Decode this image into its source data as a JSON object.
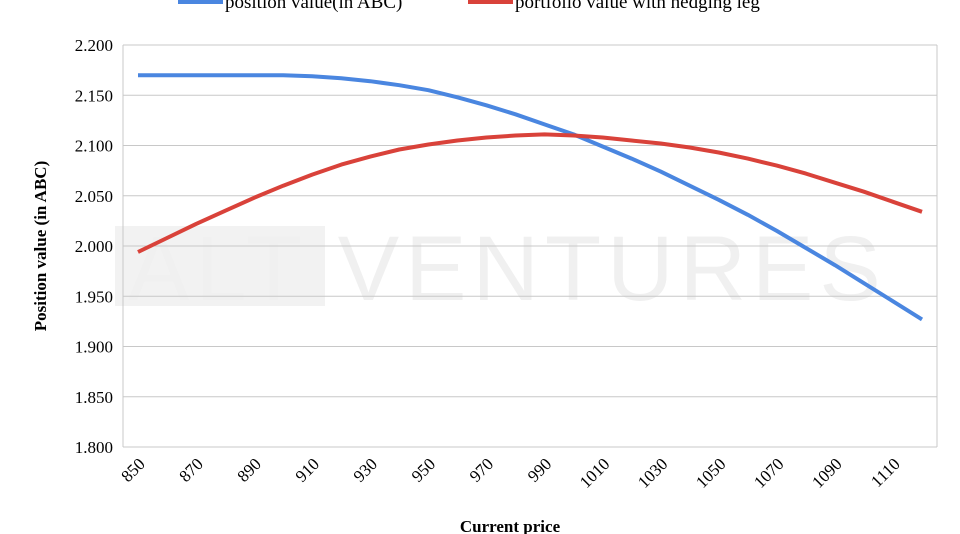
{
  "chart_data": {
    "type": "line",
    "title": "",
    "xlabel": "Current price",
    "ylabel": "Position value (in ABC)",
    "ylim": [
      1.8,
      2.2
    ],
    "yticks": [
      "1.800",
      "1.850",
      "1.900",
      "1.950",
      "2.000",
      "2.050",
      "2.100",
      "2.150",
      "2.200"
    ],
    "xtick_labels": [
      "850",
      "870",
      "890",
      "910",
      "930",
      "950",
      "970",
      "990",
      "1010",
      "1030",
      "1050",
      "1070",
      "1090",
      "1110"
    ],
    "x": [
      850,
      860,
      870,
      880,
      890,
      900,
      910,
      920,
      930,
      940,
      950,
      960,
      970,
      980,
      990,
      1000,
      1010,
      1020,
      1030,
      1040,
      1050,
      1060,
      1070,
      1080,
      1090,
      1100,
      1110,
      1120
    ],
    "grid": "horizontal",
    "legend_position": "top",
    "series": [
      {
        "name": "position value(in ABC)",
        "color": "#4a86e0",
        "values": [
          2.17,
          2.17,
          2.17,
          2.17,
          2.17,
          2.17,
          2.169,
          2.167,
          2.164,
          2.16,
          2.155,
          2.148,
          2.14,
          2.131,
          2.121,
          2.111,
          2.099,
          2.087,
          2.074,
          2.06,
          2.046,
          2.031,
          2.015,
          1.998,
          1.981,
          1.963,
          1.945,
          1.927
        ]
      },
      {
        "name": "portfolio value with hedging leg",
        "color": "#d9423a",
        "values": [
          1.994,
          2.008,
          2.022,
          2.035,
          2.048,
          2.06,
          2.071,
          2.081,
          2.089,
          2.096,
          2.101,
          2.105,
          2.108,
          2.11,
          2.111,
          2.11,
          2.108,
          2.105,
          2.102,
          2.098,
          2.093,
          2.087,
          2.08,
          2.072,
          2.063,
          2.054,
          2.044,
          2.034
        ]
      }
    ]
  },
  "watermark": "ALT VENTURES"
}
